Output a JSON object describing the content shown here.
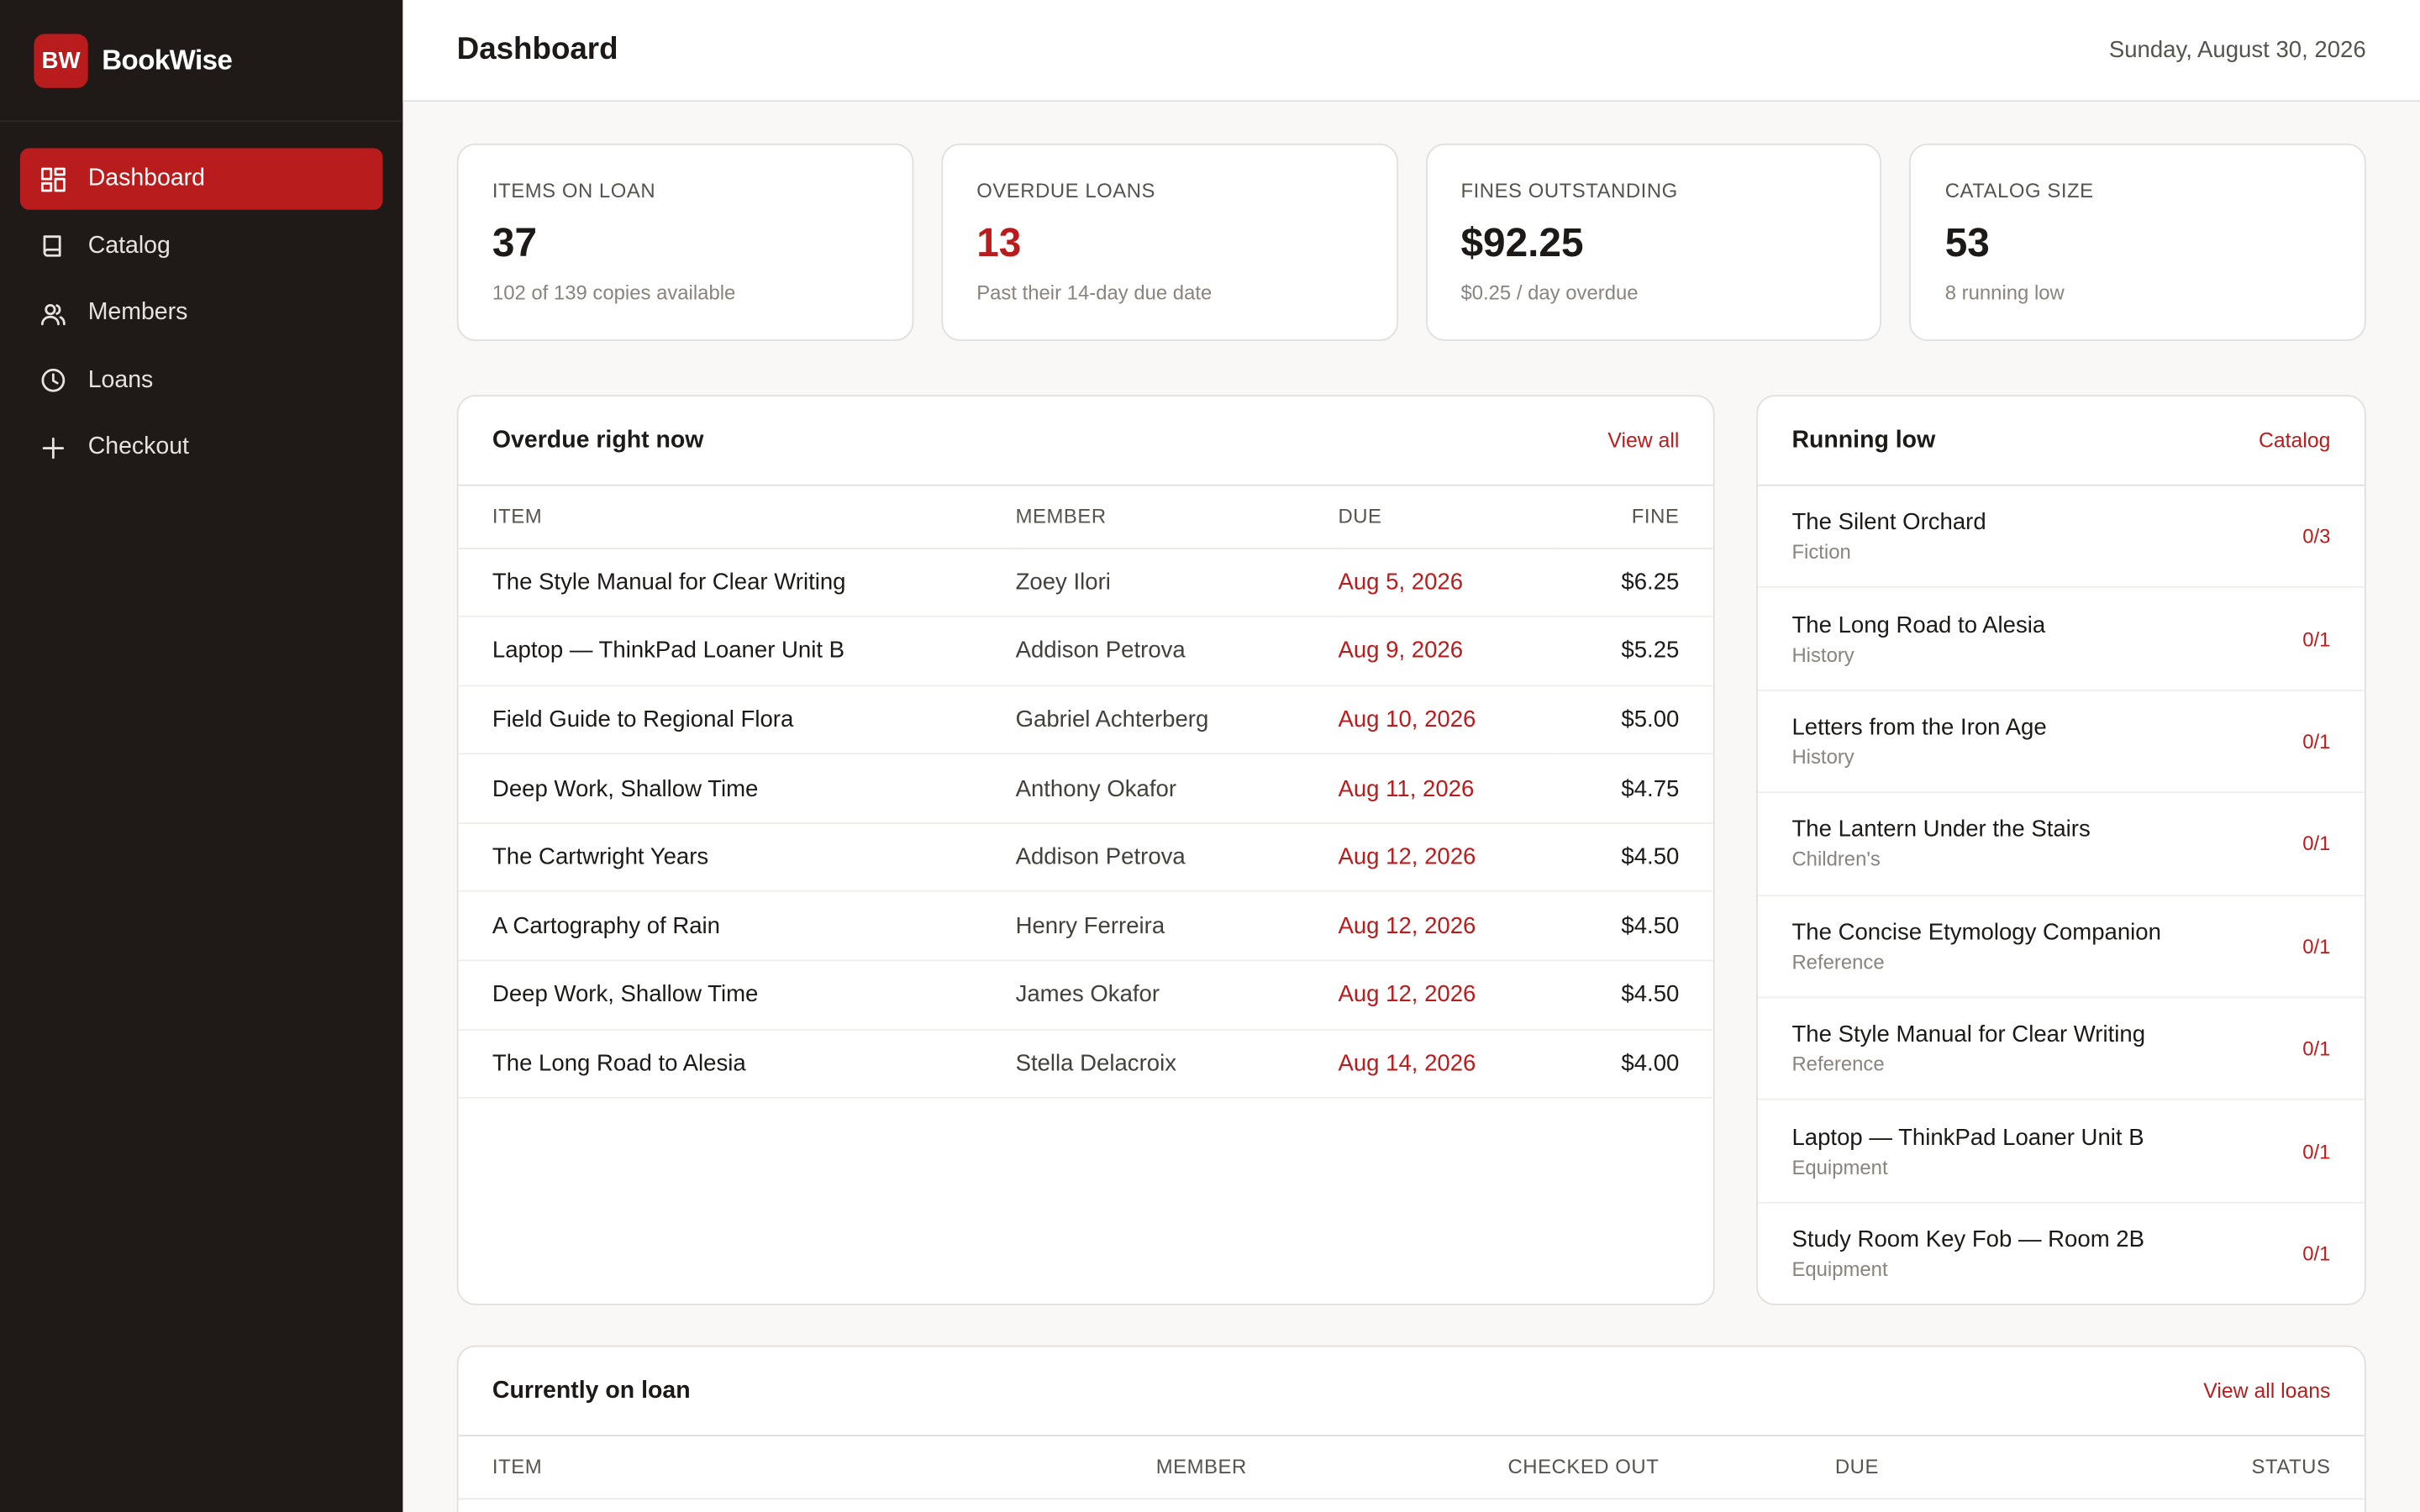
{
  "brand": {
    "logo": "BW",
    "name": "BookWise"
  },
  "nav": [
    {
      "label": "Dashboard",
      "icon": "dashboard-icon",
      "active": true
    },
    {
      "label": "Catalog",
      "icon": "book-icon"
    },
    {
      "label": "Members",
      "icon": "users-icon"
    },
    {
      "label": "Loans",
      "icon": "clock-icon"
    },
    {
      "label": "Checkout",
      "icon": "plus-icon"
    }
  ],
  "header": {
    "title": "Dashboard",
    "date": "Sunday, August 30, 2026"
  },
  "stats": [
    {
      "label": "ITEMS ON LOAN",
      "value": "37",
      "sub": "102 of 139 copies available"
    },
    {
      "label": "OVERDUE LOANS",
      "value": "13",
      "sub": "Past their 14-day due date",
      "danger": true
    },
    {
      "label": "FINES OUTSTANDING",
      "value": "$92.25",
      "sub": "$0.25 / day overdue"
    },
    {
      "label": "CATALOG SIZE",
      "value": "53",
      "sub": "8 running low"
    }
  ],
  "overdue": {
    "title": "Overdue right now",
    "link": "View all",
    "columns": {
      "item": "ITEM",
      "member": "MEMBER",
      "due": "DUE",
      "fine": "FINE"
    },
    "rows": [
      {
        "item": "The Style Manual for Clear Writing",
        "member": "Zoey Ilori",
        "due": "Aug 5, 2026",
        "fine": "$6.25"
      },
      {
        "item": "Laptop — ThinkPad Loaner Unit B",
        "member": "Addison Petrova",
        "due": "Aug 9, 2026",
        "fine": "$5.25"
      },
      {
        "item": "Field Guide to Regional Flora",
        "member": "Gabriel Achterberg",
        "due": "Aug 10, 2026",
        "fine": "$5.00"
      },
      {
        "item": "Deep Work, Shallow Time",
        "member": "Anthony Okafor",
        "due": "Aug 11, 2026",
        "fine": "$4.75"
      },
      {
        "item": "The Cartwright Years",
        "member": "Addison Petrova",
        "due": "Aug 12, 2026",
        "fine": "$4.50"
      },
      {
        "item": "A Cartography of Rain",
        "member": "Henry Ferreira",
        "due": "Aug 12, 2026",
        "fine": "$4.50"
      },
      {
        "item": "Deep Work, Shallow Time",
        "member": "James Okafor",
        "due": "Aug 12, 2026",
        "fine": "$4.50"
      },
      {
        "item": "The Long Road to Alesia",
        "member": "Stella Delacroix",
        "due": "Aug 14, 2026",
        "fine": "$4.00"
      }
    ]
  },
  "running_low": {
    "title": "Running low",
    "link": "Catalog",
    "items": [
      {
        "title": "The Silent Orchard",
        "category": "Fiction",
        "count": "0/3"
      },
      {
        "title": "The Long Road to Alesia",
        "category": "History",
        "count": "0/1"
      },
      {
        "title": "Letters from the Iron Age",
        "category": "History",
        "count": "0/1"
      },
      {
        "title": "The Lantern Under the Stairs",
        "category": "Children's",
        "count": "0/1"
      },
      {
        "title": "The Concise Etymology Companion",
        "category": "Reference",
        "count": "0/1"
      },
      {
        "title": "The Style Manual for Clear Writing",
        "category": "Reference",
        "count": "0/1"
      },
      {
        "title": "Laptop — ThinkPad Loaner Unit B",
        "category": "Equipment",
        "count": "0/1"
      },
      {
        "title": "Study Room Key Fob — Room 2B",
        "category": "Equipment",
        "count": "0/1"
      }
    ]
  },
  "on_loan": {
    "title": "Currently on loan",
    "link": "View all loans",
    "columns": {
      "item": "ITEM",
      "member": "MEMBER",
      "checked_out": "CHECKED OUT",
      "due": "DUE",
      "status": "STATUS"
    }
  },
  "colors": {
    "accent": "#b91c1c",
    "sidebar": "#1f1a18",
    "background": "#f9f8f7"
  }
}
